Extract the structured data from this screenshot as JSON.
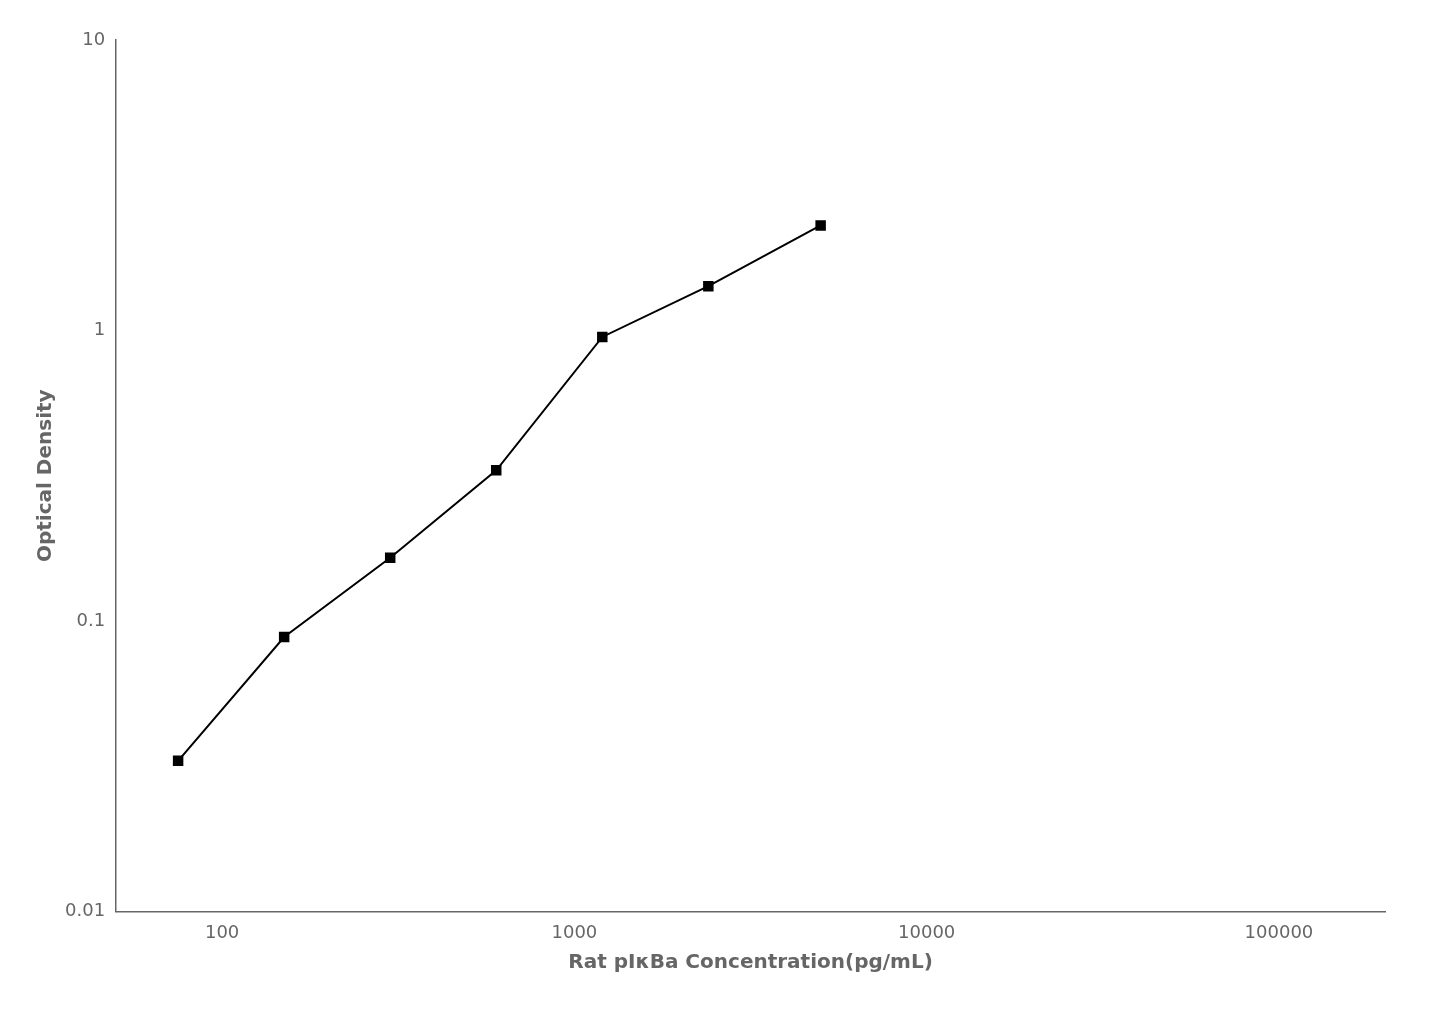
{
  "chart_data": {
    "type": "line",
    "x": [
      75,
      150,
      300,
      600,
      1200,
      2400,
      5000
    ],
    "values": [
      0.033,
      0.088,
      0.165,
      0.33,
      0.95,
      1.42,
      2.3
    ],
    "xlabel": "Rat pIκBa Concentration(pg/mL)",
    "ylabel": "Optical Density",
    "color": "#000000",
    "marker": "square",
    "log": true,
    "xlim": [
      50,
      200000
    ],
    "ylim": [
      0.01,
      10
    ],
    "xticks": [
      100,
      1000,
      10000,
      100000
    ],
    "yticks": [
      0.01,
      0.1,
      1,
      10
    ],
    "grid": false
  }
}
